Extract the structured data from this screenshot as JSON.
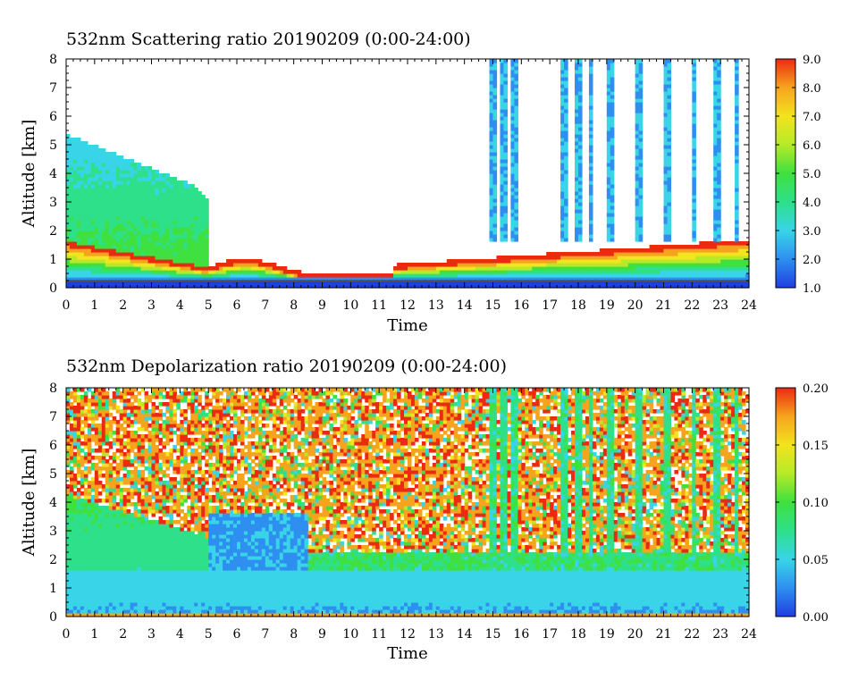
{
  "chart_data": [
    {
      "type": "heatmap",
      "title": "532nm Scattering ratio  20190209 (0:00-24:00)",
      "xlabel": "Time",
      "ylabel": "Altitude [km]",
      "xlim": [
        0,
        24
      ],
      "ylim": [
        0,
        8
      ],
      "x_ticks": [
        "0",
        "1",
        "2",
        "3",
        "4",
        "5",
        "6",
        "7",
        "8",
        "9",
        "10",
        "11",
        "12",
        "13",
        "14",
        "15",
        "16",
        "17",
        "18",
        "19",
        "20",
        "21",
        "22",
        "23",
        "24"
      ],
      "y_ticks": [
        "0",
        "1",
        "2",
        "3",
        "4",
        "5",
        "6",
        "7",
        "8"
      ],
      "colorbar": {
        "range": [
          1.0,
          9.0
        ],
        "ticks": [
          "1.0",
          "2.0",
          "3.0",
          "4.0",
          "5.0",
          "6.0",
          "7.0",
          "8.0",
          "9.0"
        ],
        "colors": [
          "#1f3fe0",
          "#2f8ff0",
          "#39d4e8",
          "#2ee08a",
          "#3fe03f",
          "#b6ea28",
          "#f2e41e",
          "#f6a41e",
          "#ec2a12"
        ]
      }
    },
    {
      "type": "heatmap",
      "title": "532nm Depolarization ratio  20190209 (0:00-24:00)",
      "xlabel": "Time",
      "ylabel": "Altitude [km]",
      "xlim": [
        0,
        24
      ],
      "ylim": [
        0,
        8
      ],
      "x_ticks": [
        "0",
        "1",
        "2",
        "3",
        "4",
        "5",
        "6",
        "7",
        "8",
        "9",
        "10",
        "11",
        "12",
        "13",
        "14",
        "15",
        "16",
        "17",
        "18",
        "19",
        "20",
        "21",
        "22",
        "23",
        "24"
      ],
      "y_ticks": [
        "0",
        "1",
        "2",
        "3",
        "4",
        "5",
        "6",
        "7",
        "8"
      ],
      "colorbar": {
        "range": [
          0.0,
          0.2
        ],
        "ticks": [
          "0.00",
          "0.05",
          "0.10",
          "0.15",
          "0.20"
        ],
        "colors": [
          "#1f3fe0",
          "#2f8ff0",
          "#39d4e8",
          "#2ee08a",
          "#3fe03f",
          "#b6ea28",
          "#f2e41e",
          "#f6a41e",
          "#ec2a12"
        ]
      }
    }
  ]
}
